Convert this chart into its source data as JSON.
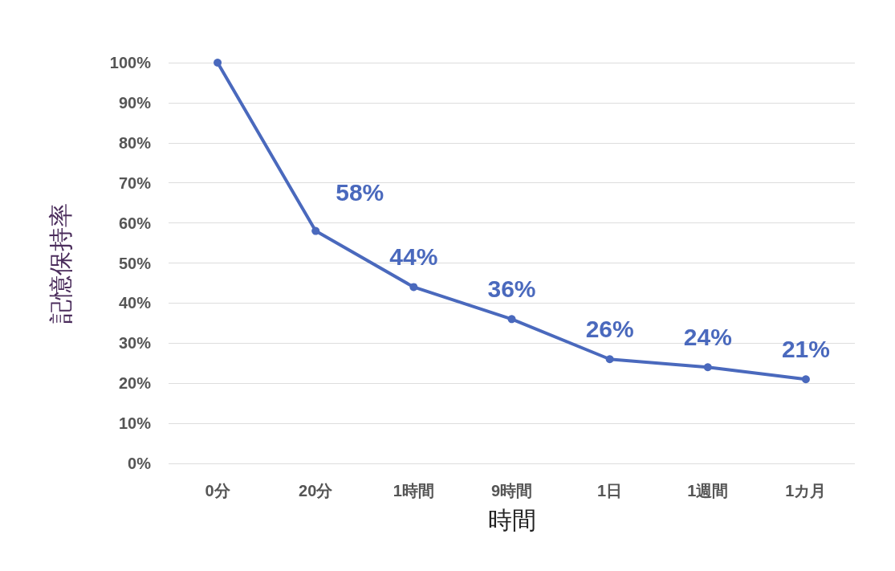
{
  "chart_data": {
    "type": "line",
    "xlabel": "時間",
    "ylabel": "記憶保持率",
    "categories": [
      "0分",
      "20分",
      "1時間",
      "9時間",
      "1日",
      "1週間",
      "1カ月"
    ],
    "series": [
      {
        "color": "#4a69bd",
        "values": [
          100,
          58,
          44,
          36,
          26,
          24,
          21
        ],
        "value_labels": [
          null,
          "58%",
          "44%",
          "36%",
          "26%",
          "24%",
          "21%"
        ]
      }
    ],
    "ylim": [
      0,
      100
    ],
    "yticks": [
      {
        "value": 0,
        "label": "0%"
      },
      {
        "value": 10,
        "label": "10%"
      },
      {
        "value": 20,
        "label": "20%"
      },
      {
        "value": 30,
        "label": "30%"
      },
      {
        "value": 40,
        "label": "40%"
      },
      {
        "value": 50,
        "label": "50%"
      },
      {
        "value": 60,
        "label": "60%"
      },
      {
        "value": 70,
        "label": "70%"
      },
      {
        "value": 80,
        "label": "80%"
      },
      {
        "value": 90,
        "label": "90%"
      },
      {
        "value": 100,
        "label": "100%"
      }
    ],
    "grid": "y",
    "marker": "circle",
    "line_style": "solid"
  }
}
